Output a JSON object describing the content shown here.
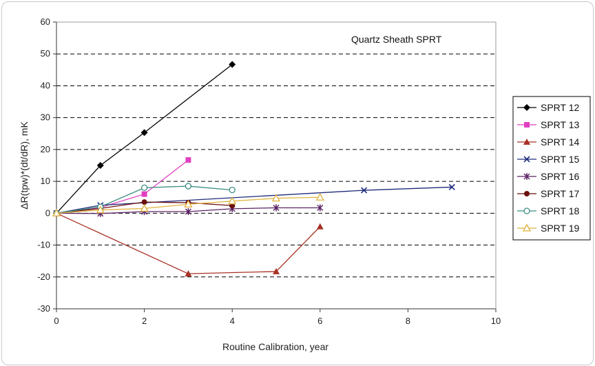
{
  "chart_data": {
    "type": "line",
    "title": "",
    "annotation": "Quartz Sheath SPRT",
    "xlabel": "Routine Calibration, year",
    "ylabel": "ΔR(tpw)*(dt/dR), mK",
    "xlim": [
      0,
      10
    ],
    "ylim": [
      -30,
      60
    ],
    "xticks": [
      0,
      2,
      4,
      6,
      8,
      10
    ],
    "yticks": [
      -30,
      -20,
      -10,
      0,
      10,
      20,
      30,
      40,
      50,
      60
    ],
    "grid": "horizontal dashed",
    "legend_position": "right",
    "series": [
      {
        "name": "SPRT 12",
        "color": "#000000",
        "marker": "diamond",
        "x": [
          0,
          1,
          2,
          4
        ],
        "y": [
          0,
          15,
          25.3,
          46.7
        ]
      },
      {
        "name": "SPRT 13",
        "color": "#e040c0",
        "marker": "square",
        "x": [
          0,
          1,
          2,
          3
        ],
        "y": [
          0,
          1.8,
          6,
          16.7
        ]
      },
      {
        "name": "SPRT 14",
        "color": "#a83226",
        "marker": "triangle",
        "x": [
          0,
          3,
          5,
          6
        ],
        "y": [
          0,
          -19,
          -18.3,
          -4.2
        ]
      },
      {
        "name": "SPRT 15",
        "color": "#1e2a7a",
        "marker": "x",
        "x": [
          0,
          1,
          7,
          9
        ],
        "y": [
          0,
          2.5,
          7.2,
          8.2
        ]
      },
      {
        "name": "SPRT 16",
        "color": "#5a2364",
        "marker": "star",
        "x": [
          0,
          1,
          2,
          3,
          4,
          5,
          6
        ],
        "y": [
          0,
          -0.1,
          0.5,
          0.5,
          1.4,
          1.7,
          1.7
        ]
      },
      {
        "name": "SPRT 17",
        "color": "#6b0f0f",
        "marker": "circle",
        "x": [
          0,
          1,
          2,
          3,
          4
        ],
        "y": [
          0,
          1.5,
          3.5,
          3.3,
          2.4
        ]
      },
      {
        "name": "SPRT 18",
        "color": "#3c8c80",
        "marker": "circle-open",
        "x": [
          0,
          1,
          2,
          3,
          4
        ],
        "y": [
          0,
          2,
          8,
          8.5,
          7.3
        ]
      },
      {
        "name": "SPRT 19",
        "color": "#e0b23c",
        "marker": "triangle-open",
        "x": [
          0,
          1,
          2,
          3,
          4,
          5,
          6
        ],
        "y": [
          0,
          1,
          1.5,
          2.8,
          3.8,
          4.7,
          5
        ]
      }
    ]
  }
}
